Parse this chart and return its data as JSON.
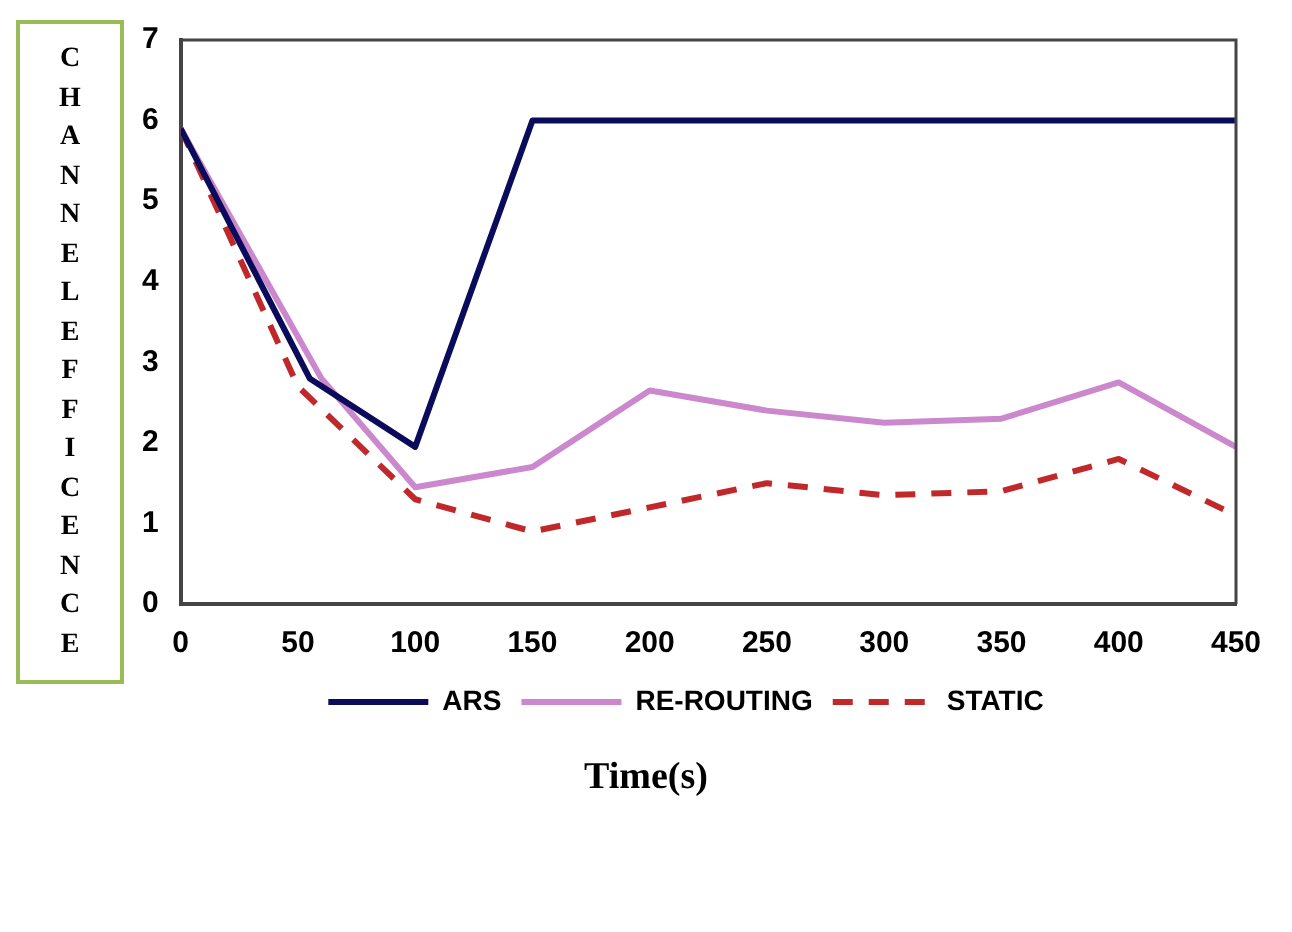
{
  "chart_data": {
    "type": "line",
    "xlabel": "Time(s)",
    "ylabel": "CHANNELEFFICENCE",
    "xlim": [
      0,
      450
    ],
    "xticks": [
      0,
      50,
      100,
      150,
      200,
      250,
      300,
      350,
      400,
      450
    ],
    "ylim": [
      0,
      7
    ],
    "yticks": [
      0,
      1,
      2,
      3,
      4,
      5,
      6,
      7
    ],
    "grid": false,
    "legend": "bottom",
    "marker": "none",
    "series": [
      {
        "name": "ARS",
        "color": "#0b0b5c",
        "line_style": "solid",
        "x": [
          0,
          55,
          100,
          150,
          450
        ],
        "values": [
          5.9,
          2.8,
          1.95,
          6,
          6
        ]
      },
      {
        "name": "RE-ROUTING",
        "color": "#cc88cc",
        "line_style": "solid",
        "x": [
          0,
          60,
          100,
          150,
          200,
          250,
          300,
          350,
          400,
          450
        ],
        "values": [
          5.9,
          2.8,
          1.45,
          1.7,
          2.65,
          2.4,
          2.25,
          2.3,
          2.75,
          1.95
        ]
      },
      {
        "name": "STATIC",
        "color": "#c0282a",
        "line_style": "dashed",
        "x": [
          0,
          50,
          100,
          150,
          200,
          250,
          300,
          350,
          400,
          450
        ],
        "values": [
          5.9,
          2.7,
          1.3,
          0.9,
          1.2,
          1.5,
          1.35,
          1.4,
          1.8,
          1.1
        ]
      }
    ]
  }
}
